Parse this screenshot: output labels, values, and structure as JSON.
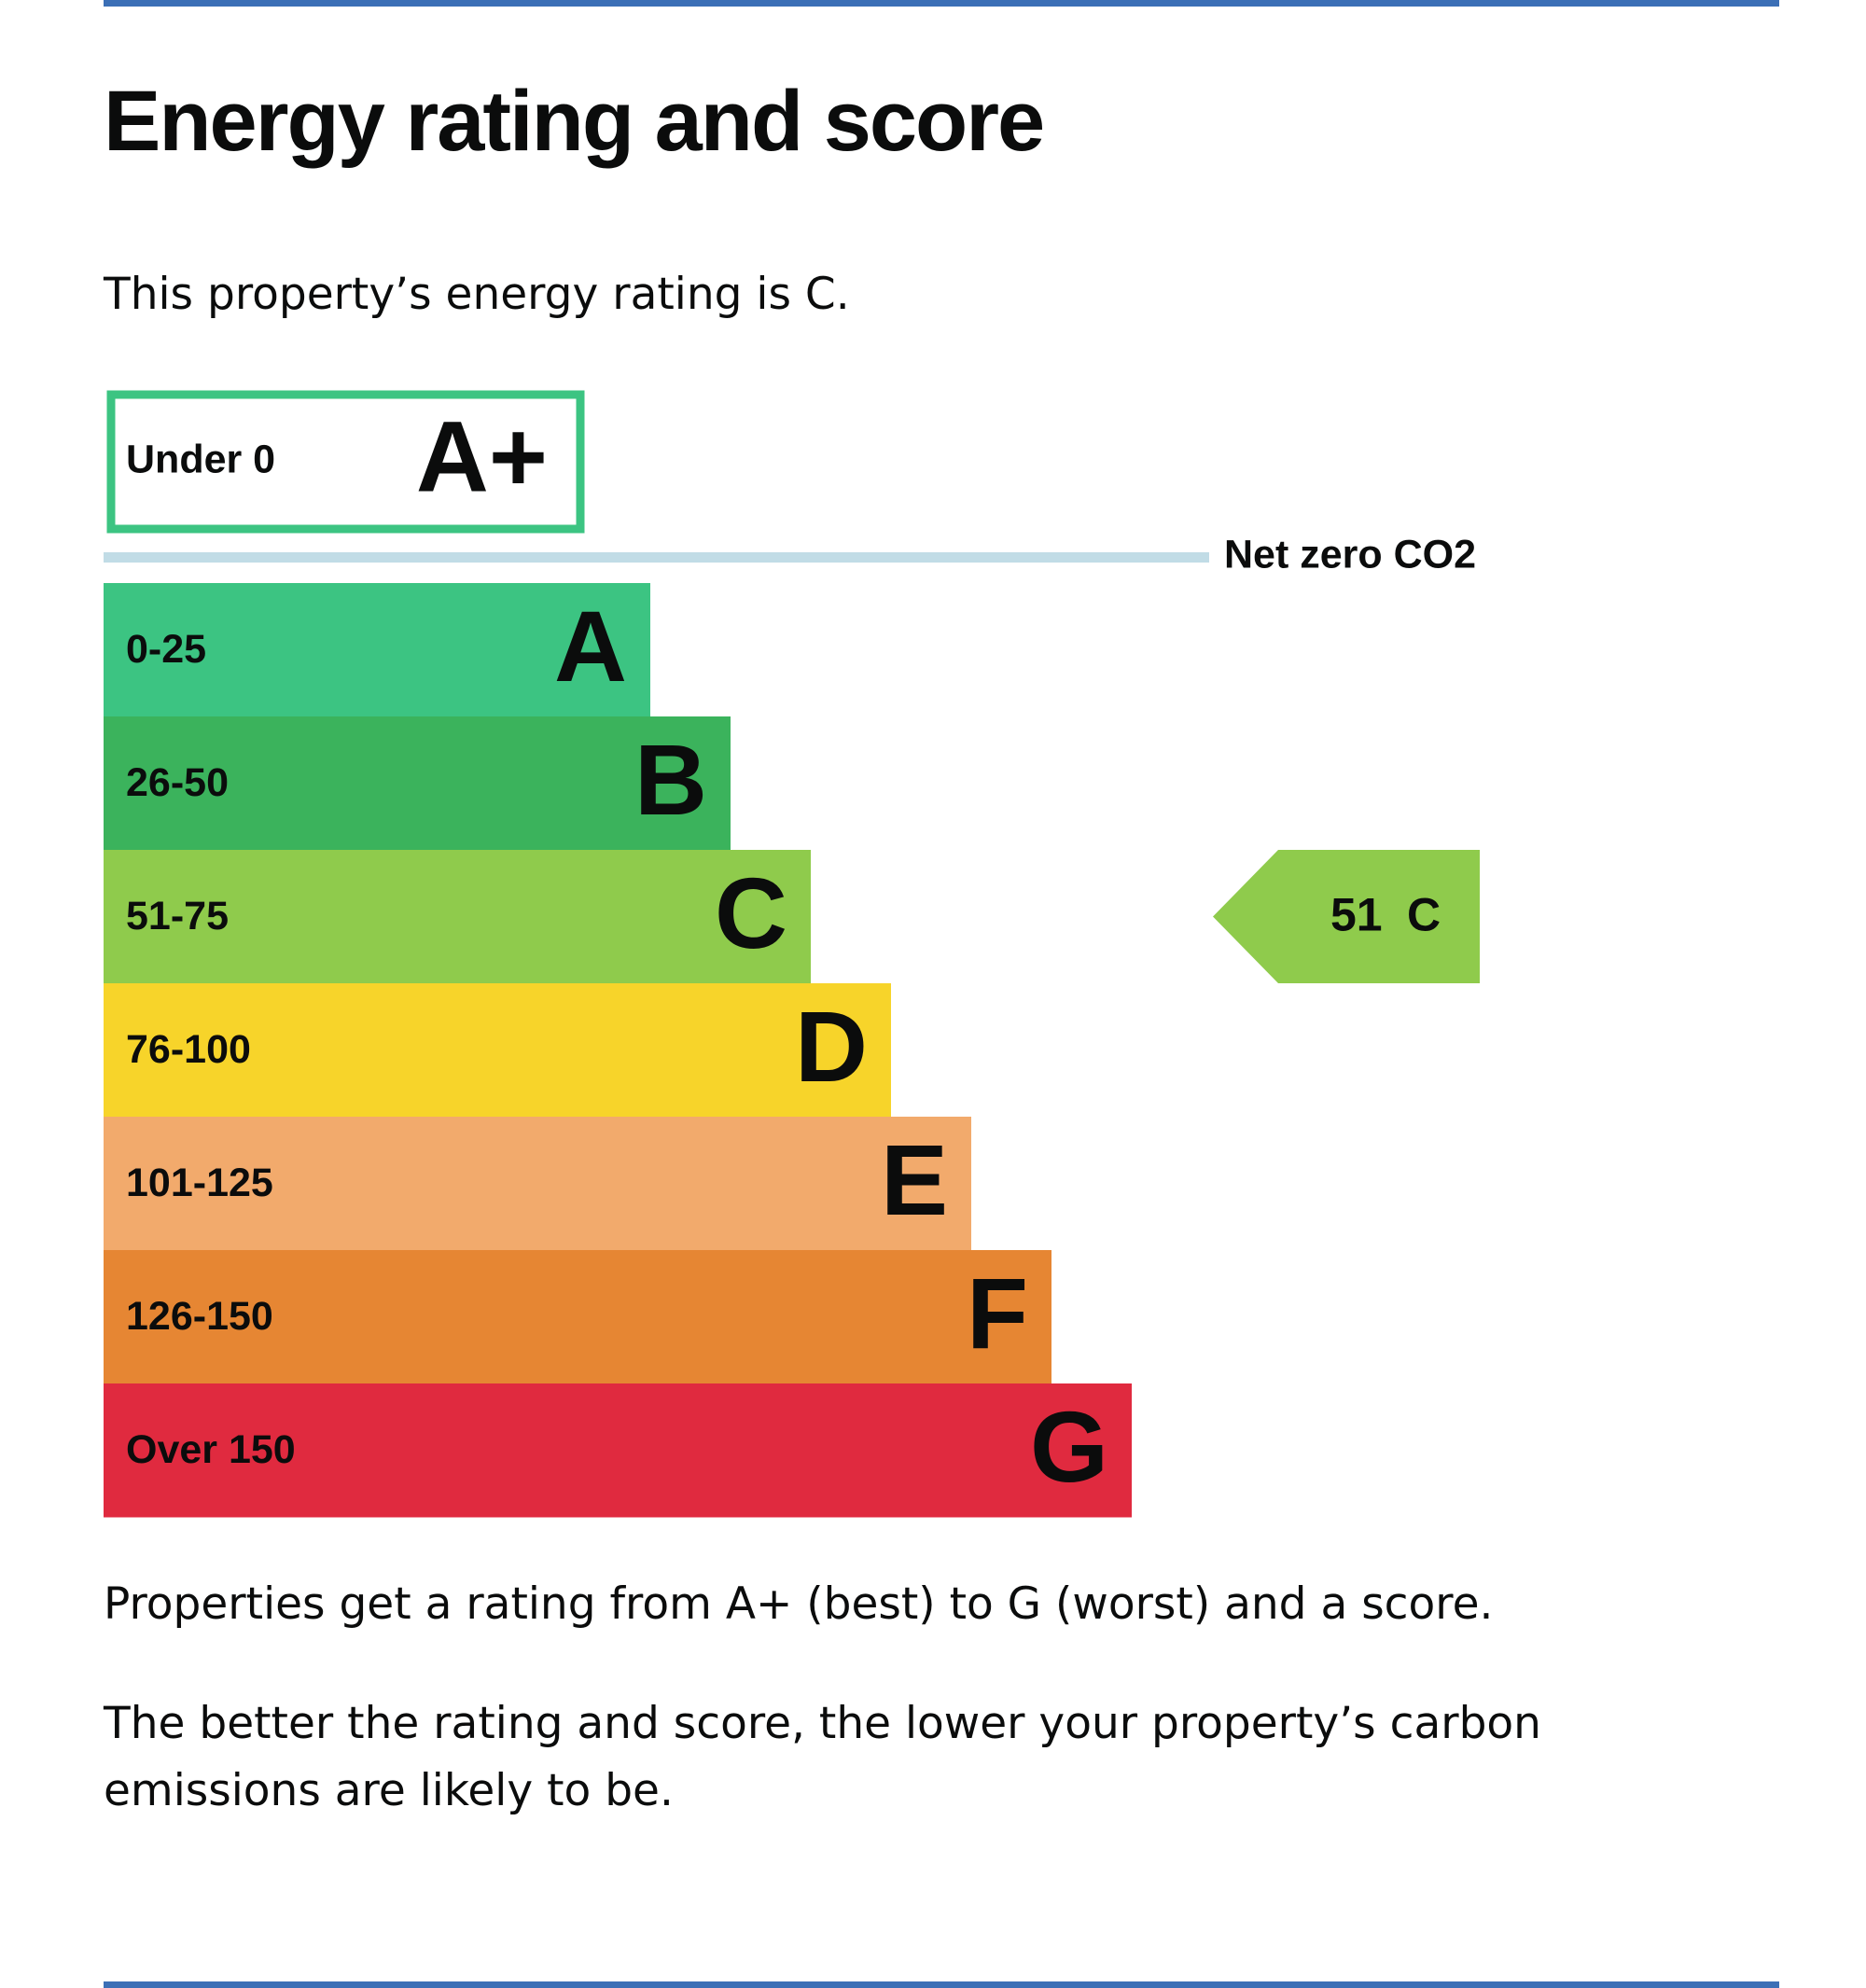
{
  "page": {
    "title": "Energy rating and score",
    "rating_sentence": "This property’s energy rating is C.",
    "scale_sentence": "Properties get a rating from A+ (best) to G (worst) and a score.",
    "emissions_sentence": "The better the rating and score, the lower your property’s carbon emissions are likely to be."
  },
  "chart_data": {
    "type": "bar",
    "orientation": "horizontal",
    "title": "",
    "bands": [
      {
        "range": "Under 0",
        "letter": "A+",
        "color": "#3cc482",
        "style": "outline"
      },
      {
        "range": "0-25",
        "letter": "A",
        "color": "#3cc482"
      },
      {
        "range": "26-50",
        "letter": "B",
        "color": "#3bb35c"
      },
      {
        "range": "51-75",
        "letter": "C",
        "color": "#8fcb4c"
      },
      {
        "range": "76-100",
        "letter": "D",
        "color": "#f7d42a"
      },
      {
        "range": "101-125",
        "letter": "E",
        "color": "#f2aa6c"
      },
      {
        "range": "126-150",
        "letter": "F",
        "color": "#e68633"
      },
      {
        "range": "Over 150",
        "letter": "G",
        "color": "#e02a3f"
      }
    ],
    "net_zero": {
      "label": "Net zero CO2",
      "line_color": "#c1dce6"
    },
    "current": {
      "score": "51",
      "letter": "C",
      "color": "#8fcb4c"
    }
  }
}
